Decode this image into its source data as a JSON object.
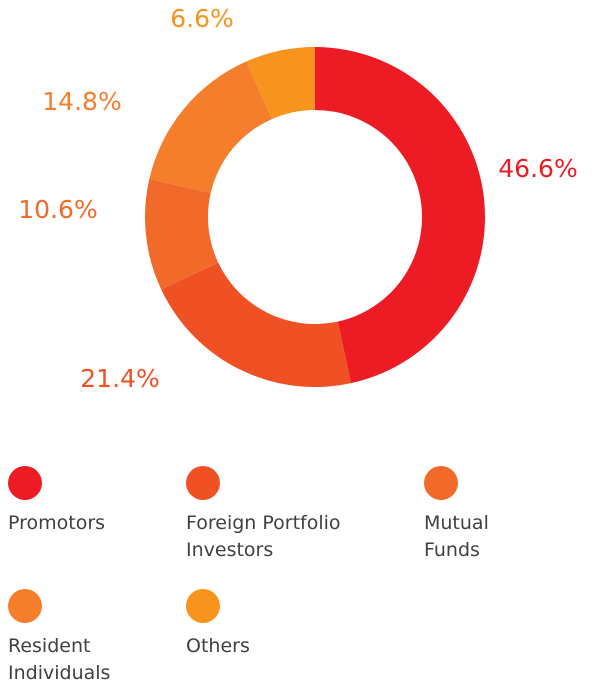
{
  "chart_data": {
    "type": "donut",
    "categories": [
      "Promotors",
      "Foreign Portfolio Investors",
      "Mutual Funds",
      "Resident Individuals",
      "Others"
    ],
    "values": [
      46.6,
      21.4,
      10.6,
      14.8,
      6.6
    ],
    "value_labels": [
      "46.6%",
      "21.4%",
      "10.6%",
      "14.8%",
      "6.6%"
    ],
    "colors": [
      "#ed1c24",
      "#ef5125",
      "#f26a2a",
      "#f47e2b",
      "#f7941d"
    ]
  }
}
